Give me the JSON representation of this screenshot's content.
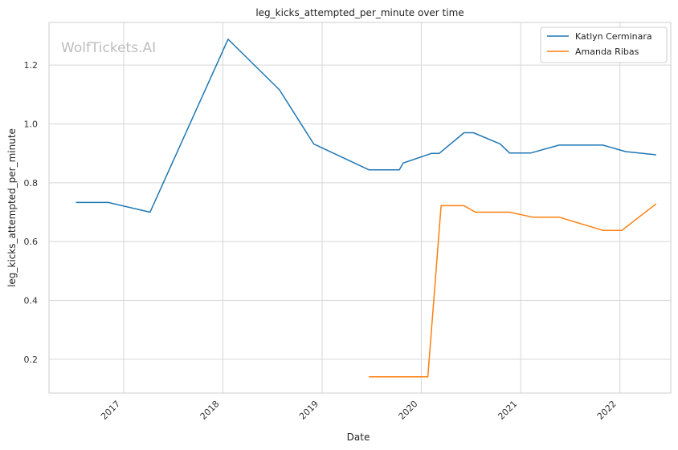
{
  "chart_data": {
    "type": "line",
    "title": "leg_kicks_attempted_per_minute over time",
    "xlabel": "Date",
    "ylabel": "leg_kicks_attempted_per_minute",
    "watermark": "WolfTickets.AI",
    "x_range": [
      "2016-04-01",
      "2022-07-07"
    ],
    "ylim": [
      0.085,
      1.345
    ],
    "x_ticks": [
      "2017",
      "2018",
      "2019",
      "2020",
      "2021",
      "2022"
    ],
    "y_ticks": [
      "0.2",
      "0.4",
      "0.6",
      "0.8",
      "1.0",
      "1.2"
    ],
    "grid": true,
    "legend_position": "top-right",
    "series": [
      {
        "name": "Katlyn Cerminara",
        "color": "#1f77b4",
        "points": [
          [
            "2016-07-09",
            0.733
          ],
          [
            "2016-11-05",
            0.733
          ],
          [
            "2017-04-08",
            0.7
          ],
          [
            "2018-01-20",
            1.288
          ],
          [
            "2018-07-28",
            1.116
          ],
          [
            "2018-12-01",
            0.932
          ],
          [
            "2019-06-22",
            0.844
          ],
          [
            "2019-10-12",
            0.844
          ],
          [
            "2019-10-26",
            0.867
          ],
          [
            "2020-02-08",
            0.9
          ],
          [
            "2020-03-07",
            0.9
          ],
          [
            "2020-06-06",
            0.97
          ],
          [
            "2020-07-11",
            0.97
          ],
          [
            "2020-10-17",
            0.932
          ],
          [
            "2020-11-21",
            0.901
          ],
          [
            "2021-02-06",
            0.901
          ],
          [
            "2021-05-22",
            0.928
          ],
          [
            "2021-10-30",
            0.928
          ],
          [
            "2022-01-22",
            0.906
          ],
          [
            "2022-05-14",
            0.895
          ]
        ]
      },
      {
        "name": "Amanda Ribas",
        "color": "#ff7f0e",
        "points": [
          [
            "2019-06-22",
            0.14
          ],
          [
            "2020-01-25",
            0.14
          ],
          [
            "2020-03-14",
            0.722
          ],
          [
            "2020-06-06",
            0.722
          ],
          [
            "2020-07-18",
            0.7
          ],
          [
            "2020-11-21",
            0.7
          ],
          [
            "2021-02-13",
            0.683
          ],
          [
            "2021-05-22",
            0.683
          ],
          [
            "2021-10-30",
            0.638
          ],
          [
            "2022-01-08",
            0.638
          ],
          [
            "2022-05-14",
            0.728
          ]
        ]
      }
    ]
  }
}
